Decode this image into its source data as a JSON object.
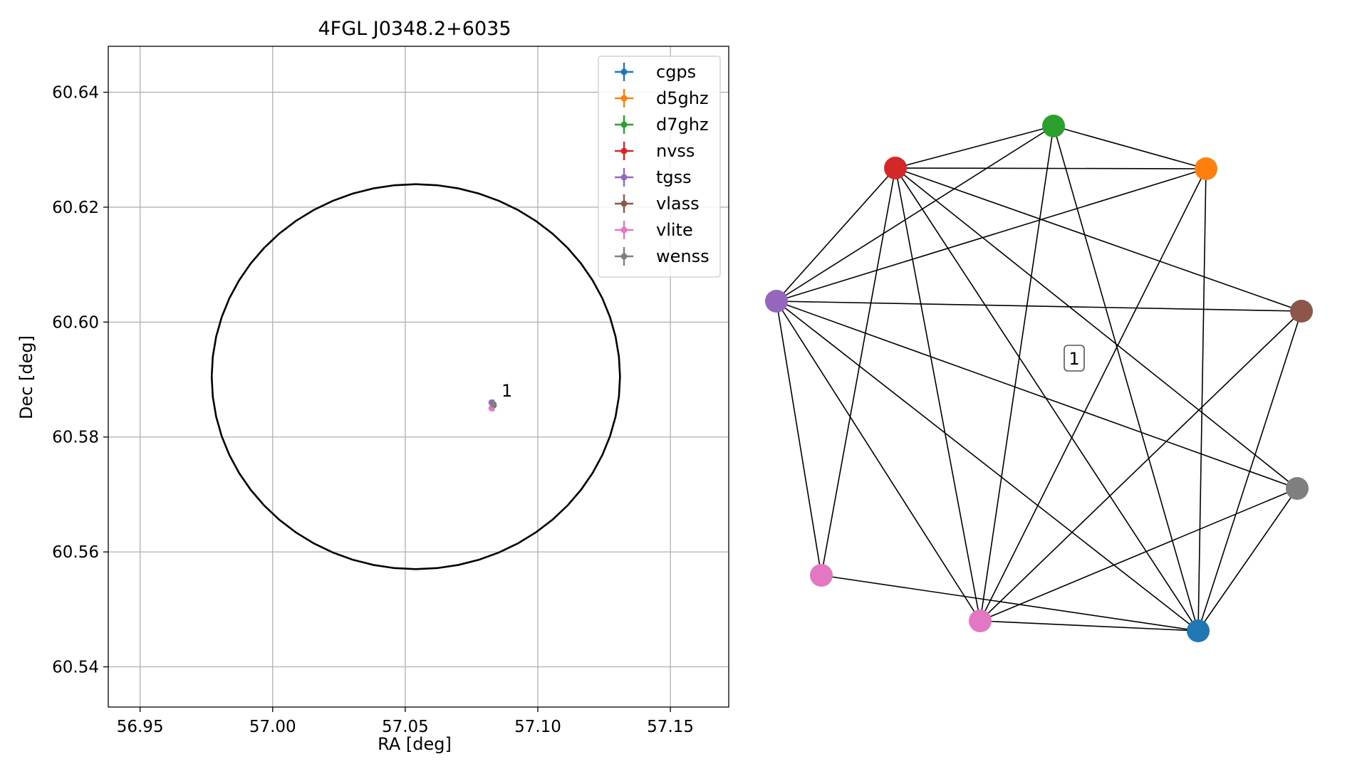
{
  "chart_data": [
    {
      "type": "scatter",
      "title": "4FGL J0348.2+6035",
      "xlabel": "RA [deg]",
      "ylabel": "Dec [deg]",
      "xlim": [
        56.938,
        57.172
      ],
      "ylim": [
        60.533,
        60.648
      ],
      "grid": true,
      "legend_position": "top-right",
      "x_ticks": [
        56.95,
        57.0,
        57.05,
        57.1,
        57.15
      ],
      "x_tick_labels": [
        "56.95",
        "57.00",
        "57.05",
        "57.10",
        "57.15"
      ],
      "y_ticks": [
        60.54,
        60.56,
        60.58,
        60.6,
        60.62,
        60.64
      ],
      "y_tick_labels": [
        "60.54",
        "60.56",
        "60.58",
        "60.60",
        "60.62",
        "60.64"
      ],
      "error_ellipse": {
        "center_ra": 57.054,
        "center_dec": 60.5905,
        "semi_axis_ra": 0.077,
        "semi_axis_dec": 0.0335
      },
      "series": [
        {
          "name": "cgps",
          "color": "#1f77b4",
          "x": 57.0833,
          "y": 60.5855,
          "xerr": 0.0003,
          "yerr": 0.001
        },
        {
          "name": "d5ghz",
          "color": "#ff7f0e",
          "x": 57.0832,
          "y": 60.5857,
          "xerr": 0.0002,
          "yerr": 0.0002
        },
        {
          "name": "d7ghz",
          "color": "#2ca02c",
          "x": 57.0832,
          "y": 60.5857,
          "xerr": 0.0002,
          "yerr": 0.0002
        },
        {
          "name": "nvss",
          "color": "#d62728",
          "x": 57.0832,
          "y": 60.5857,
          "xerr": 0.0002,
          "yerr": 0.0002
        },
        {
          "name": "tgss",
          "color": "#9467bd",
          "x": 57.0826,
          "y": 60.586,
          "xerr": 0.0002,
          "yerr": 0.0002
        },
        {
          "name": "vlass",
          "color": "#8c564b",
          "x": 57.0832,
          "y": 60.5856,
          "xerr": 0.0002,
          "yerr": 0.0002
        },
        {
          "name": "vlite",
          "color": "#e377c2",
          "x": 57.0826,
          "y": 60.585,
          "xerr": 0.0003,
          "yerr": 0.0002
        },
        {
          "name": "wenss",
          "color": "#7f7f7f",
          "x": 57.0832,
          "y": 60.5857,
          "xerr": 0.0003,
          "yerr": 0.0003
        }
      ],
      "annotations": [
        {
          "text": "1",
          "x": 57.0855,
          "y": 60.587
        }
      ]
    },
    {
      "type": "network",
      "cluster_label": "1",
      "nodes": [
        {
          "name": "cgps",
          "color": "#1f77b4"
        },
        {
          "name": "d5ghz",
          "color": "#ff7f0e"
        },
        {
          "name": "d7ghz",
          "color": "#2ca02c"
        },
        {
          "name": "nvss",
          "color": "#d62728"
        },
        {
          "name": "tgss",
          "color": "#9467bd"
        },
        {
          "name": "vlass",
          "color": "#8c564b"
        },
        {
          "name": "vlite_a",
          "color": "#e377c2"
        },
        {
          "name": "vlite_b",
          "color": "#e377c2"
        },
        {
          "name": "wenss",
          "color": "#7f7f7f"
        }
      ],
      "edges": [
        [
          "nvss",
          "d7ghz"
        ],
        [
          "nvss",
          "d5ghz"
        ],
        [
          "nvss",
          "tgss"
        ],
        [
          "nvss",
          "vlite_a"
        ],
        [
          "nvss",
          "vlite_b"
        ],
        [
          "nvss",
          "cgps"
        ],
        [
          "nvss",
          "vlass"
        ],
        [
          "nvss",
          "wenss"
        ],
        [
          "d7ghz",
          "d5ghz"
        ],
        [
          "d7ghz",
          "tgss"
        ],
        [
          "d7ghz",
          "vlite_b"
        ],
        [
          "d7ghz",
          "cgps"
        ],
        [
          "d5ghz",
          "tgss"
        ],
        [
          "d5ghz",
          "vlite_b"
        ],
        [
          "d5ghz",
          "cgps"
        ],
        [
          "tgss",
          "vlass"
        ],
        [
          "tgss",
          "vlite_a"
        ],
        [
          "tgss",
          "vlite_b"
        ],
        [
          "tgss",
          "cgps"
        ],
        [
          "tgss",
          "wenss"
        ],
        [
          "vlass",
          "vlite_b"
        ],
        [
          "vlass",
          "cgps"
        ],
        [
          "wenss",
          "cgps"
        ],
        [
          "wenss",
          "vlite_b"
        ],
        [
          "vlite_a",
          "cgps"
        ],
        [
          "vlite_b",
          "cgps"
        ]
      ]
    }
  ]
}
